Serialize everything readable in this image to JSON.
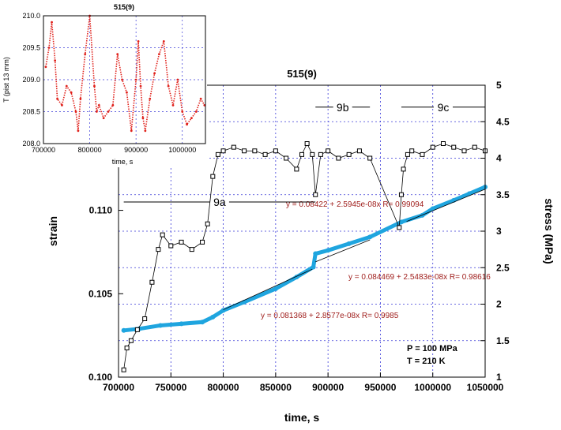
{
  "chart_data": [
    {
      "type": "scatter",
      "title": "515(9)",
      "xlabel": "time, s",
      "ylabel": "strain",
      "y2label": "stress (MPa)",
      "xlim": [
        700000,
        1050000
      ],
      "ylim": [
        0.1,
        0.1175
      ],
      "y2lim": [
        1,
        5
      ],
      "x_ticks": [
        "700000",
        "750000",
        "800000",
        "850000",
        "900000",
        "950000",
        "1000000",
        "1050000"
      ],
      "y_ticks": [
        "0.100",
        "0.105",
        "0.110"
      ],
      "y2_ticks": [
        "1",
        "1.5",
        "2",
        "2.5",
        "3",
        "3.5",
        "4",
        "4.5",
        "5"
      ],
      "grid": true,
      "series": [
        {
          "axis": "left",
          "color": "#1fa5df",
          "marker": "filled-circle",
          "x": [
            705000,
            720000,
            740000,
            760000,
            780000,
            790000,
            800000,
            820000,
            850000,
            870000,
            886000,
            888000,
            900000,
            920000,
            940000,
            970000,
            990000,
            1000000,
            1020000,
            1035000,
            1050000
          ],
          "y": [
            0.1028,
            0.1029,
            0.1031,
            0.1032,
            0.1033,
            0.1036,
            0.104,
            0.1045,
            0.1053,
            0.106,
            0.1066,
            0.1074,
            0.1076,
            0.108,
            0.1084,
            0.1093,
            0.1097,
            0.1101,
            0.1106,
            0.111,
            0.1114
          ]
        },
        {
          "axis": "right",
          "color": "#000000",
          "marker": "open-square",
          "x": [
            705000,
            708000,
            712000,
            718000,
            725000,
            732000,
            738000,
            742000,
            750000,
            760000,
            770000,
            780000,
            785000,
            790000,
            795000,
            800000,
            810000,
            820000,
            830000,
            840000,
            850000,
            860000,
            870000,
            875000,
            880000,
            885000,
            888000,
            893000,
            900000,
            910000,
            920000,
            930000,
            940000,
            968000,
            970000,
            972000,
            976000,
            980000,
            990000,
            1000000,
            1010000,
            1020000,
            1030000,
            1040000,
            1050000
          ],
          "y": [
            1.1,
            1.4,
            1.5,
            1.65,
            1.8,
            2.3,
            2.75,
            2.95,
            2.8,
            2.85,
            2.75,
            2.85,
            3.1,
            3.75,
            4.05,
            4.1,
            4.15,
            4.1,
            4.1,
            4.05,
            4.1,
            4.0,
            3.85,
            4.05,
            4.2,
            4.05,
            3.5,
            4.05,
            4.1,
            4.0,
            4.05,
            4.1,
            4.0,
            3.05,
            3.5,
            3.85,
            4.05,
            4.1,
            4.05,
            4.15,
            4.2,
            4.15,
            4.1,
            4.15,
            4.1
          ]
        }
      ],
      "fits": [
        {
          "label": "y = 0.081368 + 2.8577e-08x   R= 0.9985",
          "x": [
            800000,
            885000
          ],
          "y": [
            0.10423,
            0.10666
          ]
        },
        {
          "label": "y = 0.084469 + 2.5483e-08x   R= 0.98616",
          "x": [
            888000,
            940000
          ],
          "y": [
            0.1071,
            0.10842
          ]
        },
        {
          "label": "y = 0.08422 + 2.5945e-08x   R= 0.99094",
          "x": [
            975000,
            1050000
          ],
          "y": [
            0.10952,
            0.11146
          ]
        }
      ],
      "segments": [
        {
          "label": "9a",
          "x": [
            705000,
            888000
          ],
          "y": 3.4
        },
        {
          "label": "9b",
          "x": [
            888000,
            940000
          ],
          "y": 4.7
        },
        {
          "label": "9c",
          "x": [
            970000,
            1050000
          ],
          "y": 4.7
        }
      ],
      "annotations": [
        "P = 100 MPa",
        "T = 210 K"
      ]
    },
    {
      "type": "scatter",
      "title": "515(9)",
      "xlabel": "time, s",
      "ylabel": "T (pist 13 mm)",
      "xlim": [
        700000,
        1050000
      ],
      "ylim": [
        208.0,
        210.0
      ],
      "x_ticks": [
        "700000",
        "800000",
        "900000",
        "1000000"
      ],
      "y_ticks": [
        "208.0",
        "208.5",
        "209.0",
        "209.5",
        "210.0"
      ],
      "grid": true,
      "series": [
        {
          "color": "#e0201a",
          "marker": "dot",
          "x": [
            705000,
            712000,
            718000,
            725000,
            730000,
            740000,
            750000,
            760000,
            770000,
            775000,
            780000,
            790000,
            800000,
            810000,
            815000,
            820000,
            830000,
            840000,
            850000,
            860000,
            870000,
            880000,
            890000,
            900000,
            905000,
            910000,
            915000,
            920000,
            930000,
            940000,
            950000,
            960000,
            970000,
            980000,
            990000,
            1000000,
            1010000,
            1020000,
            1030000,
            1040000,
            1048000
          ],
          "y": [
            209.2,
            209.5,
            209.9,
            209.3,
            208.7,
            208.6,
            208.9,
            208.8,
            208.5,
            208.2,
            208.7,
            209.4,
            210.0,
            208.9,
            208.5,
            208.6,
            208.4,
            208.5,
            208.6,
            209.4,
            209.0,
            208.8,
            208.2,
            209.0,
            209.6,
            208.9,
            208.4,
            208.2,
            208.7,
            209.1,
            209.4,
            209.6,
            208.9,
            208.6,
            209.0,
            208.5,
            208.3,
            208.4,
            208.5,
            208.7,
            208.6
          ]
        }
      ]
    }
  ]
}
